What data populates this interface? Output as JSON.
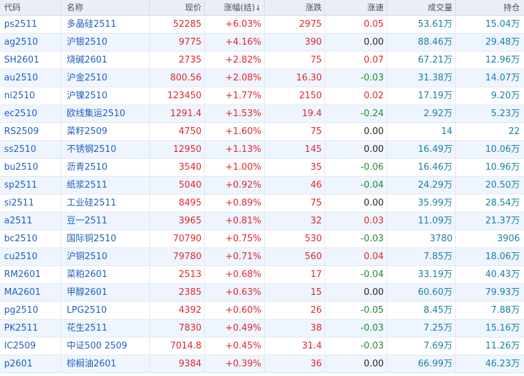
{
  "colors": {
    "up": "#e0262d",
    "down": "#1f8a2e",
    "flat": "#222222",
    "link": "#1f5fbf",
    "volume": "#1a7fa3",
    "header_bg": "#e9eef7",
    "alt_row_bg": "#eef5ff"
  },
  "headers": {
    "code": "代码",
    "name": "名称",
    "price": "现价",
    "change_pct": "涨幅(结)",
    "sort_icon": "↓",
    "change": "涨跌",
    "speed": "涨速",
    "volume": "成交量",
    "open_interest": "持仓"
  },
  "rows": [
    {
      "code": "ps2511",
      "name": "多晶硅2511",
      "price": "52285",
      "change_pct": "+6.03%",
      "change": "2975",
      "speed": "0.05",
      "speed_dir": "up",
      "volume": "53.61万",
      "open_interest": "15.04万"
    },
    {
      "code": "ag2510",
      "name": "沪银2510",
      "price": "9775",
      "change_pct": "+4.16%",
      "change": "390",
      "speed": "0.00",
      "speed_dir": "flat",
      "volume": "88.46万",
      "open_interest": "29.48万"
    },
    {
      "code": "SH2601",
      "name": "烧碱2601",
      "price": "2735",
      "change_pct": "+2.82%",
      "change": "75",
      "speed": "0.07",
      "speed_dir": "up",
      "volume": "67.21万",
      "open_interest": "12.96万"
    },
    {
      "code": "au2510",
      "name": "沪金2510",
      "price": "800.56",
      "change_pct": "+2.08%",
      "change": "16.30",
      "speed": "-0.03",
      "speed_dir": "down",
      "volume": "31.38万",
      "open_interest": "14.07万"
    },
    {
      "code": "ni2510",
      "name": "沪镍2510",
      "price": "123450",
      "change_pct": "+1.77%",
      "change": "2150",
      "speed": "0.02",
      "speed_dir": "up",
      "volume": "17.19万",
      "open_interest": "9.20万"
    },
    {
      "code": "ec2510",
      "name": "欧线集运2510",
      "price": "1291.4",
      "change_pct": "+1.53%",
      "change": "19.4",
      "speed": "-0.24",
      "speed_dir": "down",
      "volume": "2.92万",
      "open_interest": "5.23万"
    },
    {
      "code": "RS2509",
      "name": "菜籽2509",
      "price": "4750",
      "change_pct": "+1.60%",
      "change": "75",
      "speed": "0.00",
      "speed_dir": "flat",
      "volume": "14",
      "open_interest": "22"
    },
    {
      "code": "ss2510",
      "name": "不锈钢2510",
      "price": "12950",
      "change_pct": "+1.13%",
      "change": "145",
      "speed": "0.00",
      "speed_dir": "flat",
      "volume": "16.49万",
      "open_interest": "10.06万"
    },
    {
      "code": "bu2510",
      "name": "沥青2510",
      "price": "3540",
      "change_pct": "+1.00%",
      "change": "35",
      "speed": "-0.06",
      "speed_dir": "down",
      "volume": "16.46万",
      "open_interest": "10.96万"
    },
    {
      "code": "sp2511",
      "name": "纸浆2511",
      "price": "5040",
      "change_pct": "+0.92%",
      "change": "46",
      "speed": "-0.04",
      "speed_dir": "down",
      "volume": "24.29万",
      "open_interest": "20.50万"
    },
    {
      "code": "si2511",
      "name": "工业硅2511",
      "price": "8495",
      "change_pct": "+0.89%",
      "change": "75",
      "speed": "0.00",
      "speed_dir": "flat",
      "volume": "35.99万",
      "open_interest": "28.54万"
    },
    {
      "code": "a2511",
      "name": "豆一2511",
      "price": "3965",
      "change_pct": "+0.81%",
      "change": "32",
      "speed": "0.03",
      "speed_dir": "up",
      "volume": "11.09万",
      "open_interest": "21.37万"
    },
    {
      "code": "bc2510",
      "name": "国际铜2510",
      "price": "70790",
      "change_pct": "+0.75%",
      "change": "530",
      "speed": "-0.03",
      "speed_dir": "down",
      "volume": "3780",
      "open_interest": "3906"
    },
    {
      "code": "cu2510",
      "name": "沪铜2510",
      "price": "79780",
      "change_pct": "+0.71%",
      "change": "560",
      "speed": "0.04",
      "speed_dir": "up",
      "volume": "7.85万",
      "open_interest": "18.06万"
    },
    {
      "code": "RM2601",
      "name": "菜粕2601",
      "price": "2513",
      "change_pct": "+0.68%",
      "change": "17",
      "speed": "-0.04",
      "speed_dir": "down",
      "volume": "33.19万",
      "open_interest": "40.43万"
    },
    {
      "code": "MA2601",
      "name": "甲醇2601",
      "price": "2385",
      "change_pct": "+0.63%",
      "change": "15",
      "speed": "0.00",
      "speed_dir": "flat",
      "volume": "60.60万",
      "open_interest": "79.93万"
    },
    {
      "code": "pg2510",
      "name": "LPG2510",
      "price": "4392",
      "change_pct": "+0.60%",
      "change": "26",
      "speed": "-0.05",
      "speed_dir": "down",
      "volume": "8.45万",
      "open_interest": "7.88万"
    },
    {
      "code": "PK2511",
      "name": "花生2511",
      "price": "7830",
      "change_pct": "+0.49%",
      "change": "38",
      "speed": "-0.03",
      "speed_dir": "down",
      "volume": "7.25万",
      "open_interest": "15.16万"
    },
    {
      "code": "IC2509",
      "name": "中证500 2509",
      "price": "7014.8",
      "change_pct": "+0.45%",
      "change": "31.4",
      "speed": "-0.03",
      "speed_dir": "down",
      "volume": "7.69万",
      "open_interest": "11.26万"
    },
    {
      "code": "p2601",
      "name": "棕榈油2601",
      "price": "9384",
      "change_pct": "+0.39%",
      "change": "36",
      "speed": "0.00",
      "speed_dir": "flat",
      "volume": "66.99万",
      "open_interest": "46.23万"
    }
  ]
}
